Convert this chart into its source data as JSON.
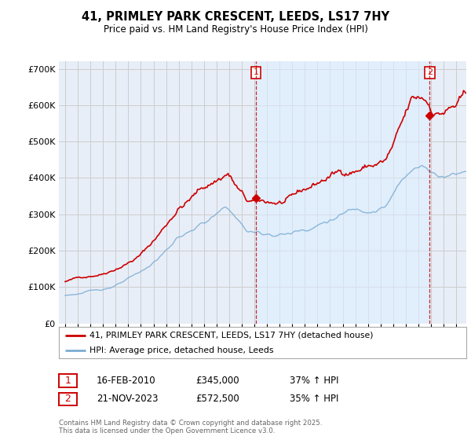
{
  "title": "41, PRIMLEY PARK CRESCENT, LEEDS, LS17 7HY",
  "subtitle": "Price paid vs. HM Land Registry's House Price Index (HPI)",
  "legend_line1": "41, PRIMLEY PARK CRESCENT, LEEDS, LS17 7HY (detached house)",
  "legend_line2": "HPI: Average price, detached house, Leeds",
  "sale1_date_str": "16-FEB-2010",
  "sale1_price_str": "£345,000",
  "sale1_hpi_str": "37% ↑ HPI",
  "sale2_date_str": "21-NOV-2023",
  "sale2_price_str": "£572,500",
  "sale2_hpi_str": "35% ↑ HPI",
  "footer": "Contains HM Land Registry data © Crown copyright and database right 2025.\nThis data is licensed under the Open Government Licence v3.0.",
  "red_color": "#cc0000",
  "blue_color": "#7aadd4",
  "shade_color": "#ddeeff",
  "grid_color": "#cccccc",
  "bg_color": "#e8eef8",
  "ylim": [
    0,
    720000
  ],
  "xlim_left": 1994.5,
  "xlim_right": 2026.8,
  "sale1_x": 2010.12,
  "sale1_y": 345000,
  "sale2_x": 2023.9,
  "sale2_y": 572500,
  "yticks": [
    0,
    100000,
    200000,
    300000,
    400000,
    500000,
    600000,
    700000
  ],
  "ytick_labels": [
    "£0",
    "£100K",
    "£200K",
    "£300K",
    "£400K",
    "£500K",
    "£600K",
    "£700K"
  ]
}
